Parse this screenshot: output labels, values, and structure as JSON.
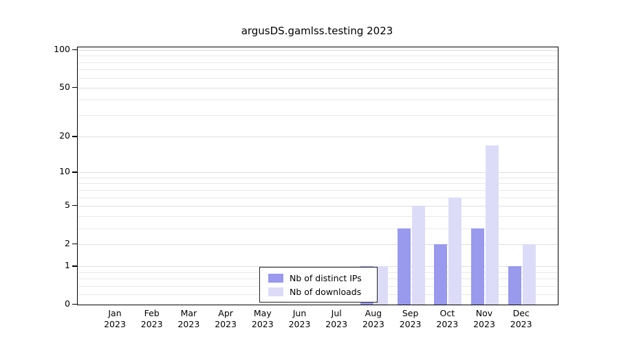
{
  "title": "argusDS.gamlss.testing 2023",
  "colors": {
    "ips": "#9999ee",
    "downloads": "#dcdcf8",
    "grid_minor": "#e8e8e8",
    "grid_major": "#dedede",
    "axis": "#000000",
    "background": "#ffffff"
  },
  "legend": {
    "entries": [
      {
        "label": "Nb of distinct IPs",
        "color": "#9999ee"
      },
      {
        "label": "Nb of downloads",
        "color": "#dcdcf8"
      }
    ]
  },
  "chart_data": {
    "type": "bar",
    "title": "argusDS.gamlss.testing 2023",
    "categories": [
      "Jan",
      "Feb",
      "Mar",
      "Apr",
      "May",
      "Jun",
      "Jul",
      "Aug",
      "Sep",
      "Oct",
      "Nov",
      "Dec"
    ],
    "year": "2023",
    "series": [
      {
        "name": "Nb of distinct IPs",
        "color": "#9999ee",
        "values": [
          0,
          0,
          0,
          0,
          0,
          0,
          0,
          1,
          3,
          2,
          3,
          1
        ]
      },
      {
        "name": "Nb of downloads",
        "color": "#dcdcf8",
        "values": [
          0,
          0,
          0,
          0,
          0,
          0,
          0,
          1,
          5,
          6,
          17,
          2
        ]
      }
    ],
    "yticks": [
      0,
      1,
      2,
      5,
      10,
      20,
      50,
      100
    ],
    "minor_gridlines": [
      0.2,
      0.4,
      0.6,
      0.8,
      1,
      2,
      3,
      4,
      5,
      6,
      7,
      8,
      9,
      10,
      20,
      30,
      40,
      50,
      60,
      70,
      80,
      90,
      100
    ],
    "scale": "log10(y+1)",
    "ylim": [
      0,
      100
    ],
    "grid": true,
    "legend_position": "bottom-center-inside"
  }
}
